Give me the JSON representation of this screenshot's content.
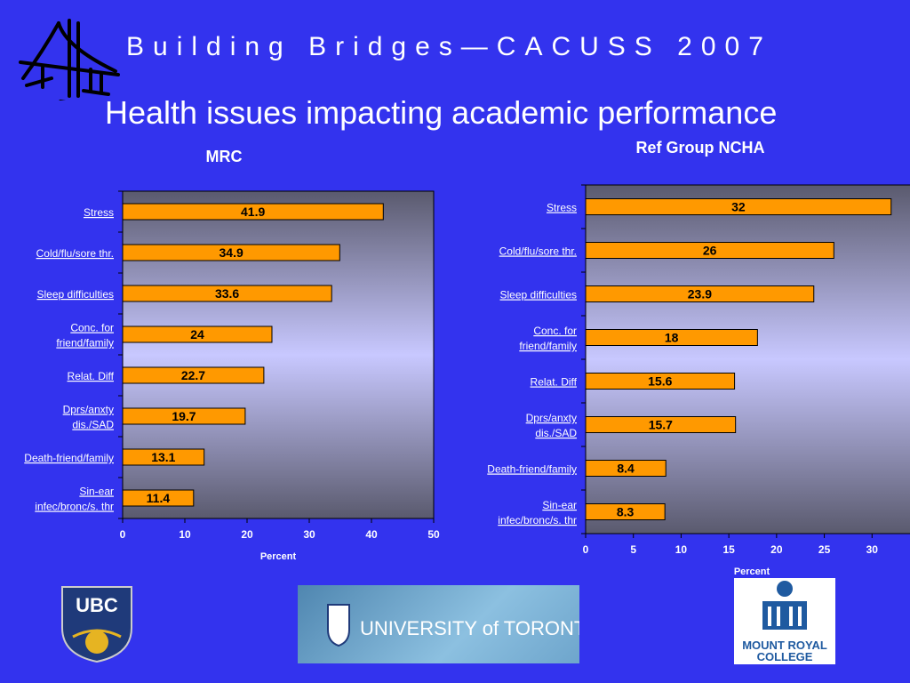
{
  "header": {
    "title": "Building  Bridges—CACUSS 2007"
  },
  "slide": {
    "title": "Health issues impacting academic performance"
  },
  "logos": {
    "ubc": "UBC",
    "toronto": "UNIVERSITY of TORONTO",
    "mount_royal": [
      "MOUNT ROYAL",
      "COLLEGE"
    ]
  },
  "colors": {
    "background": "#3333ee",
    "bar": "#ff9900",
    "label": "#ffffff"
  },
  "chart_data": [
    {
      "type": "bar",
      "orientation": "horizontal",
      "title": "MRC",
      "xlabel": "Percent",
      "xlim": [
        0,
        50
      ],
      "xticks": [
        0,
        10,
        20,
        30,
        40,
        50
      ],
      "categories": [
        [
          "Stress"
        ],
        [
          "Cold/flu/sore thr."
        ],
        [
          "Sleep difficulties"
        ],
        [
          "Conc. for",
          "friend/family "
        ],
        [
          "Relat. Diff"
        ],
        [
          "Dprs/anxty",
          "dis./SAD"
        ],
        [
          "Death-friend/family"
        ],
        [
          "Sin-ear",
          "infec/bronc/s. thr"
        ]
      ],
      "values": [
        41.9,
        34.9,
        33.6,
        24,
        22.7,
        19.7,
        13.1,
        11.4
      ],
      "value_labels": [
        "41.9",
        "34.9",
        "33.6",
        "24",
        "22.7",
        "19.7",
        "13.1",
        "11.4"
      ]
    },
    {
      "type": "bar",
      "orientation": "horizontal",
      "title": "Ref Group NCHA",
      "xlabel": "Percent",
      "xlim": [
        0,
        35
      ],
      "xticks": [
        0,
        5,
        10,
        15,
        20,
        25,
        30
      ],
      "categories": [
        [
          "Stress"
        ],
        [
          "Cold/flu/sore thr."
        ],
        [
          "Sleep difficulties"
        ],
        [
          "Conc. for",
          "friend/family "
        ],
        [
          "Relat. Diff"
        ],
        [
          "Dprs/anxty",
          "dis./SAD"
        ],
        [
          "Death-friend/family"
        ],
        [
          "Sin-ear",
          "infec/bronc/s. thr"
        ]
      ],
      "values": [
        32,
        26,
        23.9,
        18,
        15.6,
        15.7,
        8.4,
        8.3
      ],
      "value_labels": [
        "32",
        "26",
        "23.9",
        "18",
        "15.6",
        "15.7",
        "8.4",
        "8.3"
      ]
    }
  ]
}
